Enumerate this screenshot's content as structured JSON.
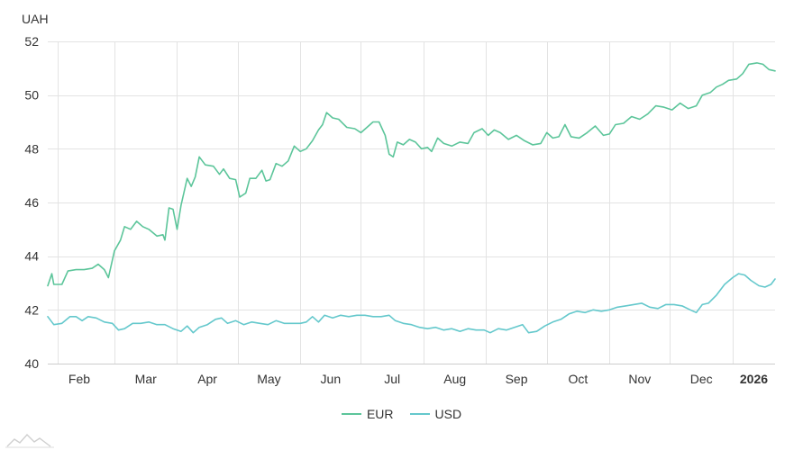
{
  "chart_data": {
    "type": "line",
    "unit_label": "UAH",
    "ylim": [
      40,
      52
    ],
    "yticks": [
      40,
      42,
      44,
      46,
      48,
      50,
      52
    ],
    "xlim": [
      "2025-01-27",
      "2026-01-22"
    ],
    "xticks": [
      {
        "date": "2025-02-01",
        "label": "Feb",
        "bold": false
      },
      {
        "date": "2025-03-01",
        "label": "Mar",
        "bold": false
      },
      {
        "date": "2025-04-01",
        "label": "Apr",
        "bold": false
      },
      {
        "date": "2025-05-01",
        "label": "May",
        "bold": false
      },
      {
        "date": "2025-06-01",
        "label": "Jun",
        "bold": false
      },
      {
        "date": "2025-07-01",
        "label": "Jul",
        "bold": false
      },
      {
        "date": "2025-08-01",
        "label": "Aug",
        "bold": false
      },
      {
        "date": "2025-09-01",
        "label": "Sep",
        "bold": false
      },
      {
        "date": "2025-10-01",
        "label": "Oct",
        "bold": false
      },
      {
        "date": "2025-11-01",
        "label": "Nov",
        "bold": false
      },
      {
        "date": "2025-12-01",
        "label": "Dec",
        "bold": false
      },
      {
        "date": "2026-01-01",
        "label": "2026",
        "bold": true
      }
    ],
    "grid": true,
    "legend_position": "bottom-center",
    "series": [
      {
        "name": "EUR",
        "color": "#5cc59a",
        "points": [
          [
            "2025-01-27",
            42.9
          ],
          [
            "2025-01-29",
            43.35
          ],
          [
            "2025-01-30",
            42.95
          ],
          [
            "2025-02-03",
            42.95
          ],
          [
            "2025-02-06",
            43.45
          ],
          [
            "2025-02-10",
            43.5
          ],
          [
            "2025-02-14",
            43.5
          ],
          [
            "2025-02-18",
            43.55
          ],
          [
            "2025-02-21",
            43.7
          ],
          [
            "2025-02-24",
            43.5
          ],
          [
            "2025-02-26",
            43.2
          ],
          [
            "2025-03-01",
            44.2
          ],
          [
            "2025-03-04",
            44.6
          ],
          [
            "2025-03-06",
            45.1
          ],
          [
            "2025-03-09",
            45.0
          ],
          [
            "2025-03-12",
            45.3
          ],
          [
            "2025-03-15",
            45.1
          ],
          [
            "2025-03-18",
            45.0
          ],
          [
            "2025-03-22",
            44.75
          ],
          [
            "2025-03-25",
            44.8
          ],
          [
            "2025-03-26",
            44.6
          ],
          [
            "2025-03-28",
            45.8
          ],
          [
            "2025-03-30",
            45.75
          ],
          [
            "2025-04-01",
            45.0
          ],
          [
            "2025-04-03",
            45.9
          ],
          [
            "2025-04-06",
            46.9
          ],
          [
            "2025-04-08",
            46.6
          ],
          [
            "2025-04-10",
            46.95
          ],
          [
            "2025-04-12",
            47.7
          ],
          [
            "2025-04-15",
            47.4
          ],
          [
            "2025-04-19",
            47.35
          ],
          [
            "2025-04-22",
            47.05
          ],
          [
            "2025-04-24",
            47.25
          ],
          [
            "2025-04-27",
            46.9
          ],
          [
            "2025-04-30",
            46.85
          ],
          [
            "2025-05-02",
            46.2
          ],
          [
            "2025-05-05",
            46.35
          ],
          [
            "2025-05-07",
            46.9
          ],
          [
            "2025-05-10",
            46.9
          ],
          [
            "2025-05-13",
            47.2
          ],
          [
            "2025-05-15",
            46.8
          ],
          [
            "2025-05-17",
            46.85
          ],
          [
            "2025-05-20",
            47.45
          ],
          [
            "2025-05-23",
            47.35
          ],
          [
            "2025-05-26",
            47.55
          ],
          [
            "2025-05-29",
            48.1
          ],
          [
            "2025-06-01",
            47.9
          ],
          [
            "2025-06-04",
            48.0
          ],
          [
            "2025-06-07",
            48.3
          ],
          [
            "2025-06-10",
            48.7
          ],
          [
            "2025-06-12",
            48.9
          ],
          [
            "2025-06-14",
            49.35
          ],
          [
            "2025-06-17",
            49.15
          ],
          [
            "2025-06-20",
            49.1
          ],
          [
            "2025-06-24",
            48.8
          ],
          [
            "2025-06-28",
            48.75
          ],
          [
            "2025-07-01",
            48.6
          ],
          [
            "2025-07-04",
            48.8
          ],
          [
            "2025-07-07",
            49.0
          ],
          [
            "2025-07-10",
            49.0
          ],
          [
            "2025-07-13",
            48.5
          ],
          [
            "2025-07-15",
            47.8
          ],
          [
            "2025-07-17",
            47.7
          ],
          [
            "2025-07-19",
            48.25
          ],
          [
            "2025-07-22",
            48.15
          ],
          [
            "2025-07-25",
            48.35
          ],
          [
            "2025-07-28",
            48.25
          ],
          [
            "2025-07-31",
            48.0
          ],
          [
            "2025-08-03",
            48.05
          ],
          [
            "2025-08-05",
            47.9
          ],
          [
            "2025-08-08",
            48.4
          ],
          [
            "2025-08-11",
            48.2
          ],
          [
            "2025-08-15",
            48.1
          ],
          [
            "2025-08-19",
            48.25
          ],
          [
            "2025-08-23",
            48.2
          ],
          [
            "2025-08-26",
            48.6
          ],
          [
            "2025-08-30",
            48.75
          ],
          [
            "2025-09-02",
            48.5
          ],
          [
            "2025-09-05",
            48.7
          ],
          [
            "2025-09-08",
            48.6
          ],
          [
            "2025-09-12",
            48.35
          ],
          [
            "2025-09-16",
            48.5
          ],
          [
            "2025-09-20",
            48.3
          ],
          [
            "2025-09-24",
            48.15
          ],
          [
            "2025-09-28",
            48.2
          ],
          [
            "2025-10-01",
            48.6
          ],
          [
            "2025-10-04",
            48.4
          ],
          [
            "2025-10-07",
            48.45
          ],
          [
            "2025-10-10",
            48.9
          ],
          [
            "2025-10-13",
            48.45
          ],
          [
            "2025-10-17",
            48.4
          ],
          [
            "2025-10-21",
            48.6
          ],
          [
            "2025-10-25",
            48.85
          ],
          [
            "2025-10-29",
            48.5
          ],
          [
            "2025-11-01",
            48.55
          ],
          [
            "2025-11-04",
            48.9
          ],
          [
            "2025-11-08",
            48.95
          ],
          [
            "2025-11-12",
            49.2
          ],
          [
            "2025-11-16",
            49.1
          ],
          [
            "2025-11-20",
            49.3
          ],
          [
            "2025-11-24",
            49.6
          ],
          [
            "2025-11-28",
            49.55
          ],
          [
            "2025-12-02",
            49.45
          ],
          [
            "2025-12-06",
            49.7
          ],
          [
            "2025-12-10",
            49.5
          ],
          [
            "2025-12-14",
            49.6
          ],
          [
            "2025-12-17",
            50.0
          ],
          [
            "2025-12-21",
            50.1
          ],
          [
            "2025-12-24",
            50.3
          ],
          [
            "2025-12-27",
            50.4
          ],
          [
            "2025-12-30",
            50.55
          ],
          [
            "2026-01-03",
            50.6
          ],
          [
            "2026-01-06",
            50.8
          ],
          [
            "2026-01-09",
            51.15
          ],
          [
            "2026-01-13",
            51.2
          ],
          [
            "2026-01-16",
            51.15
          ],
          [
            "2026-01-19",
            50.95
          ],
          [
            "2026-01-22",
            50.9
          ]
        ]
      },
      {
        "name": "USD",
        "color": "#64c8cc",
        "points": [
          [
            "2025-01-27",
            41.75
          ],
          [
            "2025-01-30",
            41.45
          ],
          [
            "2025-02-03",
            41.5
          ],
          [
            "2025-02-07",
            41.75
          ],
          [
            "2025-02-10",
            41.75
          ],
          [
            "2025-02-13",
            41.6
          ],
          [
            "2025-02-16",
            41.75
          ],
          [
            "2025-02-20",
            41.7
          ],
          [
            "2025-02-24",
            41.55
          ],
          [
            "2025-02-28",
            41.5
          ],
          [
            "2025-03-03",
            41.25
          ],
          [
            "2025-03-06",
            41.3
          ],
          [
            "2025-03-10",
            41.5
          ],
          [
            "2025-03-14",
            41.5
          ],
          [
            "2025-03-18",
            41.55
          ],
          [
            "2025-03-22",
            41.45
          ],
          [
            "2025-03-26",
            41.45
          ],
          [
            "2025-03-30",
            41.3
          ],
          [
            "2025-04-03",
            41.2
          ],
          [
            "2025-04-06",
            41.4
          ],
          [
            "2025-04-09",
            41.15
          ],
          [
            "2025-04-12",
            41.35
          ],
          [
            "2025-04-16",
            41.45
          ],
          [
            "2025-04-20",
            41.65
          ],
          [
            "2025-04-23",
            41.7
          ],
          [
            "2025-04-26",
            41.5
          ],
          [
            "2025-04-30",
            41.6
          ],
          [
            "2025-05-04",
            41.45
          ],
          [
            "2025-05-08",
            41.55
          ],
          [
            "2025-05-12",
            41.5
          ],
          [
            "2025-05-16",
            41.45
          ],
          [
            "2025-05-20",
            41.6
          ],
          [
            "2025-05-24",
            41.5
          ],
          [
            "2025-05-28",
            41.5
          ],
          [
            "2025-06-01",
            41.5
          ],
          [
            "2025-06-04",
            41.55
          ],
          [
            "2025-06-07",
            41.75
          ],
          [
            "2025-06-10",
            41.55
          ],
          [
            "2025-06-13",
            41.8
          ],
          [
            "2025-06-17",
            41.7
          ],
          [
            "2025-06-21",
            41.8
          ],
          [
            "2025-06-25",
            41.75
          ],
          [
            "2025-06-29",
            41.8
          ],
          [
            "2025-07-03",
            41.8
          ],
          [
            "2025-07-07",
            41.75
          ],
          [
            "2025-07-11",
            41.75
          ],
          [
            "2025-07-15",
            41.8
          ],
          [
            "2025-07-18",
            41.6
          ],
          [
            "2025-07-22",
            41.5
          ],
          [
            "2025-07-26",
            41.45
          ],
          [
            "2025-07-30",
            41.35
          ],
          [
            "2025-08-03",
            41.3
          ],
          [
            "2025-08-07",
            41.35
          ],
          [
            "2025-08-11",
            41.25
          ],
          [
            "2025-08-15",
            41.3
          ],
          [
            "2025-08-19",
            41.2
          ],
          [
            "2025-08-23",
            41.3
          ],
          [
            "2025-08-27",
            41.25
          ],
          [
            "2025-08-31",
            41.25
          ],
          [
            "2025-09-03",
            41.15
          ],
          [
            "2025-09-07",
            41.3
          ],
          [
            "2025-09-11",
            41.25
          ],
          [
            "2025-09-15",
            41.35
          ],
          [
            "2025-09-19",
            41.45
          ],
          [
            "2025-09-22",
            41.15
          ],
          [
            "2025-09-26",
            41.2
          ],
          [
            "2025-09-30",
            41.4
          ],
          [
            "2025-10-04",
            41.55
          ],
          [
            "2025-10-08",
            41.65
          ],
          [
            "2025-10-12",
            41.85
          ],
          [
            "2025-10-16",
            41.95
          ],
          [
            "2025-10-20",
            41.9
          ],
          [
            "2025-10-24",
            42.0
          ],
          [
            "2025-10-28",
            41.95
          ],
          [
            "2025-11-01",
            42.0
          ],
          [
            "2025-11-05",
            42.1
          ],
          [
            "2025-11-09",
            42.15
          ],
          [
            "2025-11-13",
            42.2
          ],
          [
            "2025-11-17",
            42.25
          ],
          [
            "2025-11-21",
            42.1
          ],
          [
            "2025-11-25",
            42.05
          ],
          [
            "2025-11-29",
            42.2
          ],
          [
            "2025-12-03",
            42.2
          ],
          [
            "2025-12-07",
            42.15
          ],
          [
            "2025-12-11",
            42.0
          ],
          [
            "2025-12-14",
            41.9
          ],
          [
            "2025-12-17",
            42.2
          ],
          [
            "2025-12-20",
            42.25
          ],
          [
            "2025-12-24",
            42.55
          ],
          [
            "2025-12-28",
            42.95
          ],
          [
            "2026-01-01",
            43.2
          ],
          [
            "2026-01-04",
            43.35
          ],
          [
            "2026-01-07",
            43.3
          ],
          [
            "2026-01-10",
            43.1
          ],
          [
            "2026-01-14",
            42.9
          ],
          [
            "2026-01-17",
            42.85
          ],
          [
            "2026-01-20",
            42.95
          ],
          [
            "2026-01-22",
            43.15
          ]
        ]
      }
    ]
  }
}
